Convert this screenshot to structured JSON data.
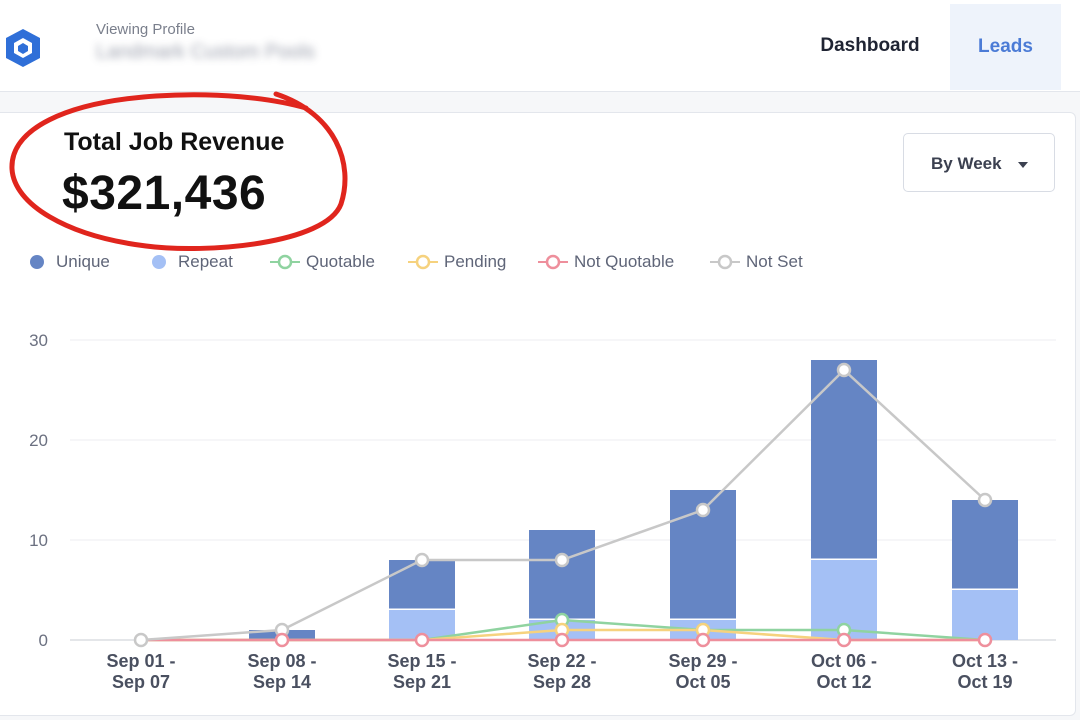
{
  "header": {
    "profile_label": "Viewing Profile",
    "profile_name": "Landmark Custom Pools",
    "nav": [
      {
        "label": "Dashboard",
        "active": false
      },
      {
        "label": "Leads",
        "active": true
      }
    ],
    "logo_icon": "hexagon-logo-icon"
  },
  "summary": {
    "title": "Total Job Revenue",
    "value": "$321,436"
  },
  "range_select": {
    "label": "By Week",
    "icon": "caret-down-icon"
  },
  "colors": {
    "unique": "#6585c4",
    "repeat": "#a4c0f5",
    "quotable": "#8fd3a0",
    "pending": "#f6d27e",
    "not_quotable": "#ee8f9c",
    "not_set": "#c8c8c8",
    "highlight": "#e0251d",
    "accent": "#4b7bd6"
  },
  "chart_data": {
    "type": "bar",
    "stacked": true,
    "categories": [
      "Sep 01 - Sep 07",
      "Sep 08 - Sep 14",
      "Sep 15 - Sep 21",
      "Sep 22 - Sep 28",
      "Sep 29 - Oct 05",
      "Oct 06 - Oct 12",
      "Oct 13 - Oct 19"
    ],
    "category_lines": [
      [
        "Sep 01 -",
        "Sep 07"
      ],
      [
        "Sep 08 -",
        "Sep 14"
      ],
      [
        "Sep 15 -",
        "Sep 21"
      ],
      [
        "Sep 22 -",
        "Sep 28"
      ],
      [
        "Sep 29 -",
        "Oct 05"
      ],
      [
        "Oct 06 -",
        "Oct 12"
      ],
      [
        "Oct 13 -",
        "Oct 19"
      ]
    ],
    "ylim": [
      0,
      30
    ],
    "yticks": [
      0,
      10,
      20,
      30
    ],
    "grid": true,
    "legend_position": "top-left",
    "series": [
      {
        "name": "Unique",
        "kind": "bar",
        "values": [
          0,
          1,
          5,
          9,
          13,
          20,
          9
        ]
      },
      {
        "name": "Repeat",
        "kind": "bar",
        "values": [
          0,
          0,
          3,
          2,
          2,
          8,
          5
        ]
      },
      {
        "name": "Quotable",
        "kind": "line",
        "values": [
          0,
          0,
          0,
          2,
          1,
          1,
          0
        ]
      },
      {
        "name": "Pending",
        "kind": "line",
        "values": [
          0,
          0,
          0,
          1,
          1,
          0,
          0
        ]
      },
      {
        "name": "Not Quotable",
        "kind": "line",
        "values": [
          0,
          0,
          0,
          0,
          0,
          0,
          0
        ]
      },
      {
        "name": "Not Set",
        "kind": "line",
        "values": [
          0,
          1,
          8,
          8,
          13,
          27,
          14
        ]
      }
    ]
  }
}
